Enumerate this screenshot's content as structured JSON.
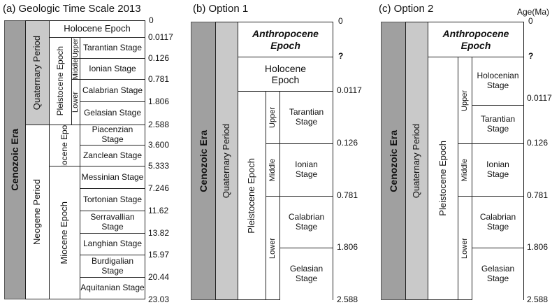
{
  "panel_a": {
    "title": "(a) Geologic Time Scale 2013",
    "era": "Cenozoic Era",
    "periods": [
      "Quaternary Period",
      "Neogene Period"
    ],
    "epochs": [
      "Holocene Epoch",
      "Pleistocene Epoch",
      "Pliocene Epoch",
      "Miocene Epoch"
    ],
    "subdivisions": [
      "Upper",
      "Middle",
      "Lower"
    ],
    "stages": [
      "Tarantian Stage",
      "Ionian Stage",
      "Calabrian Stage",
      "Gelasian Stage",
      "Piacenzian Stage",
      "Zanclean Stage",
      "Messinian Stage",
      "Tortonian Stage",
      "Serravallian Stage",
      "Langhian Stage",
      "Burdigalian Stage",
      "Aquitanian Stage"
    ],
    "ages": [
      "0",
      "0.0117",
      "0.126",
      "0.781",
      "1.806",
      "2.588",
      "3.600",
      "5.333",
      "7.246",
      "11.62",
      "13.82",
      "15.97",
      "20.44",
      "23.03"
    ]
  },
  "panel_b": {
    "title": "(b) Option 1",
    "era": "Cenozoic Era",
    "period": "Quaternary Period",
    "epochs": [
      "Anthropocene Epoch",
      "Holocene Epoch",
      "Pleistocene Epoch"
    ],
    "subdivisions": [
      "Upper",
      "Middle",
      "Lower"
    ],
    "stages": [
      "Tarantian Stage",
      "Ionian Stage",
      "Calabrian Stage",
      "Gelasian Stage"
    ],
    "ages": [
      "0",
      "?",
      "0.0117",
      "0.126",
      "0.781",
      "1.806",
      "2.588"
    ]
  },
  "panel_c": {
    "title": "(c) Option 2",
    "age_label": "Age(Ma)",
    "era": "Cenozoic Era",
    "period": "Quaternary Period",
    "epochs": [
      "Anthropocene Epoch",
      "Pleistocene Epoch"
    ],
    "subdivisions": [
      "Upper",
      "Middle",
      "Lower"
    ],
    "stages": [
      "Holocenian Stage",
      "Tarantian Stage",
      "Ionian Stage",
      "Calabrian Stage",
      "Gelasian Stage"
    ],
    "ages": [
      "0",
      "?",
      "0.0117",
      "0.126",
      "0.781",
      "1.806",
      "2.588"
    ]
  }
}
